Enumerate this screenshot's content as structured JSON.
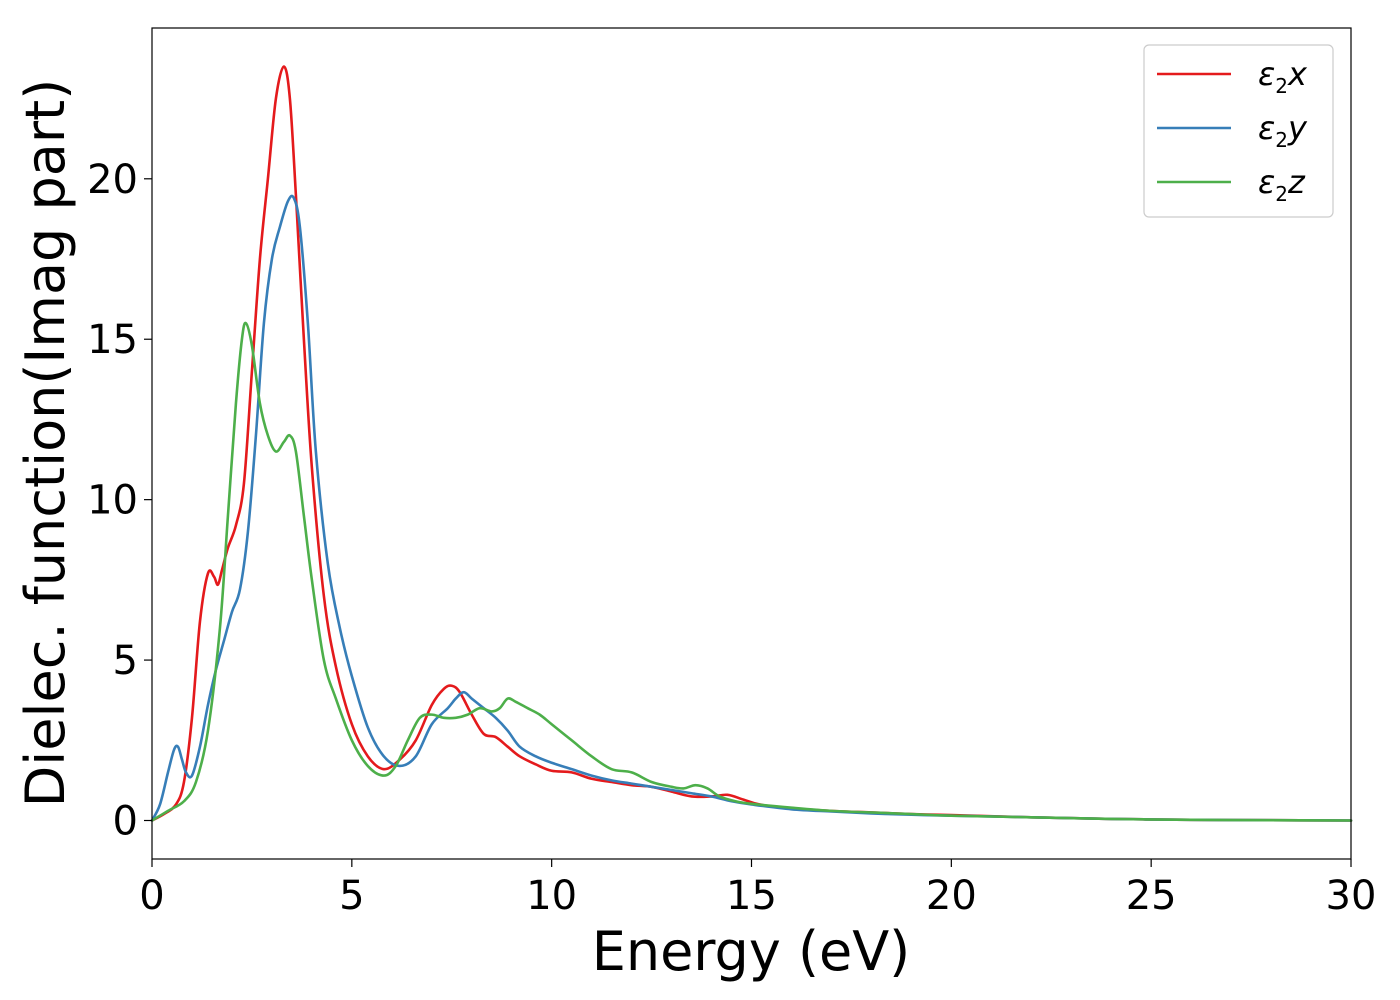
{
  "chart_data": {
    "type": "line",
    "title": "",
    "xlabel": "Energy (eV)",
    "ylabel": "Dielec. function(Imag part)",
    "xlim": [
      0,
      30
    ],
    "ylim": [
      -1.2,
      24.7
    ],
    "xticks": [
      0,
      5,
      10,
      15,
      20,
      25,
      30
    ],
    "yticks": [
      0,
      5,
      10,
      15,
      20
    ],
    "grid": false,
    "legend_position": "top-right",
    "series": [
      {
        "name": "ε2x",
        "legend": {
          "base": "ε",
          "sub": "2",
          "suffix": "x"
        },
        "color": "#e41a1c",
        "x": [
          0,
          0.3,
          0.6,
          0.8,
          1.0,
          1.2,
          1.4,
          1.55,
          1.65,
          1.75,
          1.9,
          2.1,
          2.3,
          2.5,
          2.7,
          2.9,
          3.1,
          3.3,
          3.45,
          3.6,
          3.8,
          4.0,
          4.3,
          4.6,
          5.0,
          5.4,
          5.8,
          6.2,
          6.6,
          7.0,
          7.3,
          7.5,
          7.7,
          8.0,
          8.3,
          8.6,
          8.9,
          9.2,
          9.6,
          10.0,
          10.5,
          11.0,
          11.5,
          12.0,
          12.5,
          13.0,
          13.5,
          14.0,
          14.4,
          14.8,
          15.2,
          16,
          17,
          18,
          19,
          20,
          22,
          24,
          26,
          28,
          30
        ],
        "y": [
          0,
          0.2,
          0.5,
          1.2,
          3.2,
          6.2,
          7.7,
          7.6,
          7.35,
          7.8,
          8.5,
          9.2,
          10.5,
          14.0,
          17.5,
          20.0,
          22.5,
          23.5,
          22.5,
          19.5,
          15.0,
          11.0,
          7.0,
          4.8,
          3.0,
          2.0,
          1.6,
          1.9,
          2.5,
          3.6,
          4.1,
          4.2,
          4.0,
          3.3,
          2.7,
          2.6,
          2.3,
          2.0,
          1.75,
          1.55,
          1.5,
          1.3,
          1.2,
          1.1,
          1.05,
          0.9,
          0.75,
          0.75,
          0.8,
          0.65,
          0.5,
          0.38,
          0.3,
          0.25,
          0.2,
          0.17,
          0.1,
          0.05,
          0.02,
          0.01,
          0.0
        ]
      },
      {
        "name": "ε2y",
        "legend": {
          "base": "ε",
          "sub": "2",
          "suffix": "y"
        },
        "color": "#377eb8",
        "x": [
          0,
          0.2,
          0.4,
          0.55,
          0.65,
          0.75,
          0.85,
          1.0,
          1.2,
          1.4,
          1.6,
          1.8,
          2.0,
          2.2,
          2.4,
          2.6,
          2.8,
          3.0,
          3.2,
          3.4,
          3.55,
          3.7,
          3.9,
          4.1,
          4.4,
          4.7,
          5.0,
          5.4,
          5.8,
          6.2,
          6.6,
          7.0,
          7.4,
          7.6,
          7.8,
          8.0,
          8.3,
          8.6,
          8.9,
          9.2,
          9.6,
          10.0,
          10.5,
          11.0,
          11.5,
          12.0,
          12.5,
          13.0,
          13.5,
          14.0,
          14.5,
          15.0,
          16,
          17,
          18,
          19,
          20,
          22,
          24,
          26,
          28,
          30
        ],
        "y": [
          0,
          0.5,
          1.5,
          2.2,
          2.3,
          1.9,
          1.5,
          1.4,
          2.3,
          3.6,
          4.7,
          5.6,
          6.5,
          7.2,
          9.0,
          12.0,
          15.5,
          17.5,
          18.5,
          19.3,
          19.4,
          18.5,
          15.5,
          11.5,
          8.0,
          6.0,
          4.5,
          2.9,
          2.0,
          1.7,
          2.0,
          3.0,
          3.5,
          3.8,
          4.0,
          3.8,
          3.5,
          3.2,
          2.8,
          2.3,
          2.0,
          1.8,
          1.6,
          1.4,
          1.25,
          1.15,
          1.05,
          0.95,
          0.85,
          0.75,
          0.6,
          0.5,
          0.35,
          0.28,
          0.22,
          0.18,
          0.15,
          0.1,
          0.05,
          0.02,
          0.01,
          0.0
        ]
      },
      {
        "name": "ε2z",
        "legend": {
          "base": "ε",
          "sub": "2",
          "suffix": "z"
        },
        "color": "#4daf4a",
        "x": [
          0,
          0.4,
          0.8,
          1.1,
          1.4,
          1.7,
          1.9,
          2.1,
          2.25,
          2.35,
          2.5,
          2.7,
          2.9,
          3.1,
          3.3,
          3.45,
          3.6,
          3.8,
          4.0,
          4.3,
          4.6,
          5.0,
          5.4,
          5.8,
          6.1,
          6.4,
          6.7,
          7.0,
          7.3,
          7.6,
          7.9,
          8.2,
          8.5,
          8.7,
          8.9,
          9.1,
          9.4,
          9.7,
          10.0,
          10.5,
          11.0,
          11.5,
          12.0,
          12.5,
          13.0,
          13.3,
          13.6,
          13.9,
          14.2,
          14.6,
          15.0,
          16,
          17,
          18,
          19,
          20,
          22,
          24,
          26,
          28,
          30
        ],
        "y": [
          0,
          0.3,
          0.6,
          1.2,
          2.8,
          6.0,
          9.5,
          13.0,
          15.0,
          15.5,
          14.8,
          13.0,
          12.0,
          11.5,
          11.8,
          12.0,
          11.5,
          9.5,
          7.5,
          5.0,
          3.8,
          2.5,
          1.7,
          1.4,
          1.7,
          2.5,
          3.2,
          3.3,
          3.2,
          3.2,
          3.3,
          3.5,
          3.4,
          3.5,
          3.8,
          3.7,
          3.5,
          3.3,
          3.0,
          2.5,
          2.0,
          1.6,
          1.5,
          1.2,
          1.05,
          1.0,
          1.1,
          1.0,
          0.75,
          0.6,
          0.52,
          0.4,
          0.3,
          0.25,
          0.2,
          0.15,
          0.1,
          0.05,
          0.02,
          0.01,
          0.0
        ]
      }
    ]
  }
}
